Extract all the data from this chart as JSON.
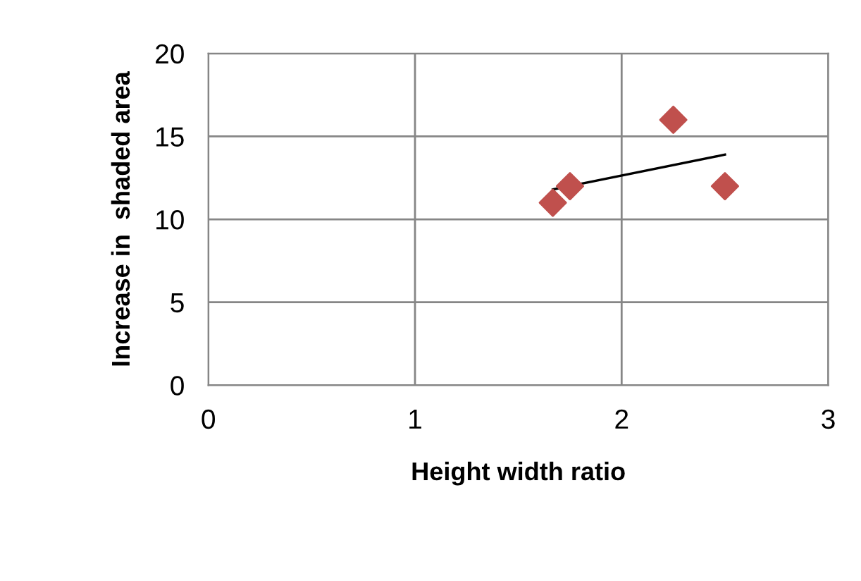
{
  "chart_data": {
    "type": "scatter",
    "xlabel": "Height width ratio",
    "ylabel": "Increase in  shaded area",
    "series": [
      {
        "color": "#c0504d",
        "marker": "diamond",
        "x": [
          1.667,
          1.75,
          2.25,
          2.5
        ],
        "values": [
          11,
          12,
          16,
          12
        ]
      },
      {
        "type": "line",
        "color": "#000000",
        "marker": "none",
        "x": [
          1.667,
          2.5
        ],
        "values": [
          11.8,
          13.9
        ]
      }
    ],
    "xlim": [
      0,
      3
    ],
    "ylim": [
      0,
      20
    ],
    "xticks": [
      0,
      1,
      2,
      3
    ],
    "yticks": [
      0,
      5,
      10,
      15,
      20
    ],
    "grid": true,
    "legend": false
  }
}
